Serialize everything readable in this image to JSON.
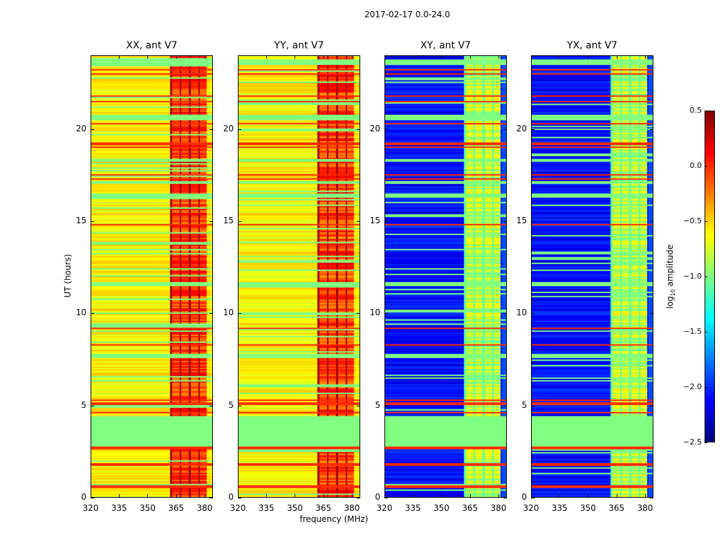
{
  "chart_data": {
    "type": "heatmap",
    "title": "2017-02-17 0.0-24.0",
    "xlabel": "frequency (MHz)",
    "ylabel": "UT (hours)",
    "xlim": [
      320,
      384.4
    ],
    "ylim": [
      0,
      24
    ],
    "xticks": [
      "320",
      "335",
      "350",
      "365",
      "380"
    ],
    "xtick_values": [
      320,
      335,
      350,
      365,
      380
    ],
    "yticks": [
      "0",
      "5",
      "10",
      "15",
      "20"
    ],
    "ytick_values": [
      0,
      5,
      10,
      15,
      20
    ],
    "colormap": "jet",
    "colorbar": {
      "label_main": "log",
      "label_sub": "10",
      "label_rest": " amplitude",
      "range": [
        -2.5,
        0.5
      ],
      "ticks": [
        "0.5",
        "0.0",
        "−0.5",
        "−1.0",
        "−1.5",
        "−2.0",
        "−2.5"
      ],
      "tick_values": [
        0.5,
        0.0,
        -0.5,
        -1.0,
        -1.5,
        -2.0,
        -2.5
      ]
    },
    "panels": [
      {
        "title": "XX, ant V7",
        "base_level": -0.6,
        "band_level": -0.05
      },
      {
        "title": "YY, ant V7",
        "base_level": -0.6,
        "band_level": -0.05
      },
      {
        "title": "XY, ant V7",
        "base_level": -2.1,
        "band_level": -0.8
      },
      {
        "title": "YX, ant V7",
        "base_level": -2.1,
        "band_level": -0.8
      }
    ],
    "strong_band_mhz": [
      362,
      381
    ],
    "flagged_level": -1.0,
    "flagged_ut_ranges": [
      [
        2.8,
        4.4
      ],
      [
        17.0,
        17.2
      ],
      [
        20.5,
        20.8
      ],
      [
        16.3,
        16.5
      ],
      [
        18.2,
        18.4
      ],
      [
        23.5,
        23.8
      ],
      [
        7.6,
        7.8
      ],
      [
        11.5,
        11.7
      ]
    ],
    "rfi_ut_lines": [
      0.6,
      1.8,
      2.7,
      4.6,
      5.1,
      5.3,
      8.3,
      9.2,
      14.8,
      17.3,
      17.5,
      19.0,
      19.2,
      20.3,
      21.5,
      21.8,
      23.0,
      23.2
    ]
  }
}
